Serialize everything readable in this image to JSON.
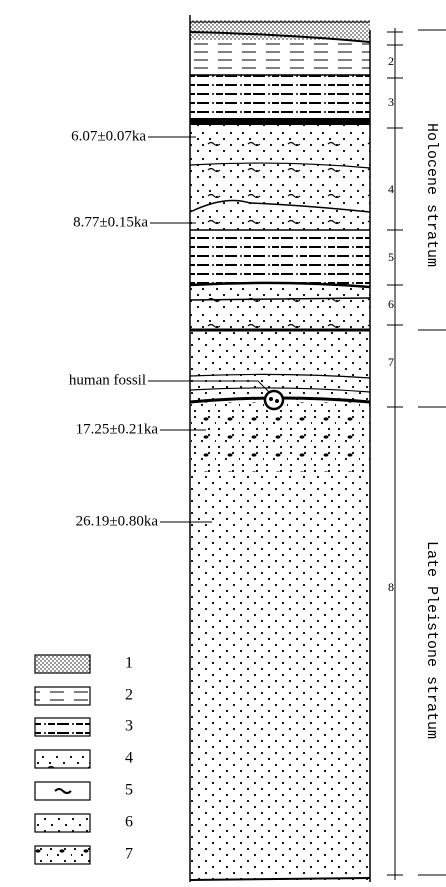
{
  "annotations": [
    "6.07±0.07ka",
    "8.77±0.15ka",
    "human fossil",
    "17.25±0.21ka",
    "26.19±0.80ka"
  ],
  "layers": [
    "2",
    "3",
    "4",
    "5",
    "6",
    "7",
    "8"
  ],
  "strata": [
    "Holocene stratum",
    "Late Pleistone stratum"
  ],
  "legend": [
    "1",
    "2",
    "3",
    "4",
    "5",
    "6",
    "7"
  ]
}
